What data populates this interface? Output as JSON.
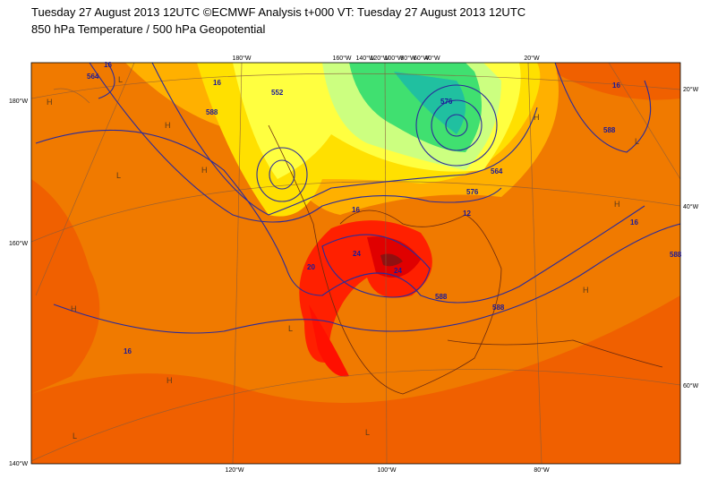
{
  "header": {
    "title": "Tuesday 27 August 2013 12UTC ©ECMWF Analysis t+000 VT: Tuesday 27 August 2013 12UTC",
    "subtitle": "850 hPa Temperature / 500 hPa Geopotential"
  },
  "map": {
    "top_labels": [
      "180°W",
      "160°W",
      "140°W",
      "120°W",
      "100°W",
      "80°W",
      "60°W",
      "40°W",
      "20°W"
    ],
    "left_labels": [
      "180°W",
      "160°W",
      "140°W"
    ],
    "bottom_labels": [
      "120°W",
      "100°W",
      "80°W"
    ],
    "right_labels": [
      "20°W",
      "40°W",
      "60°W"
    ],
    "contour_labels": [
      "16",
      "16",
      "564",
      "588",
      "552",
      "16",
      "20",
      "24",
      "24",
      "16",
      "16",
      "588",
      "588",
      "588",
      "12",
      "576",
      "564",
      "576",
      "16",
      "588"
    ],
    "pressure_centers": [
      "L",
      "H",
      "H",
      "L",
      "H",
      "H",
      "L",
      "L",
      "H",
      "L",
      "H",
      "H",
      "L",
      "H"
    ]
  }
}
